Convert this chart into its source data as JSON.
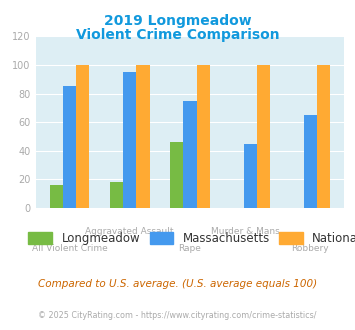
{
  "title_line1": "2019 Longmeadow",
  "title_line2": "Violent Crime Comparison",
  "categories": [
    "All Violent Crime",
    "Aggravated Assault",
    "Rape",
    "Murder & Mans...",
    "Robbery"
  ],
  "series": {
    "Longmeadow": [
      16,
      18,
      46,
      0,
      0
    ],
    "Massachusetts": [
      85,
      95,
      75,
      45,
      65
    ],
    "National": [
      100,
      100,
      100,
      100,
      100
    ]
  },
  "colors": {
    "Longmeadow": "#77bb44",
    "Massachusetts": "#4499ee",
    "National": "#ffaa33"
  },
  "ylim": [
    0,
    120
  ],
  "yticks": [
    0,
    20,
    40,
    60,
    80,
    100,
    120
  ],
  "title_color": "#1199dd",
  "axis_bg_color": "#ddeef4",
  "fig_bg_color": "#ffffff",
  "grid_color": "#ffffff",
  "footnote1": "Compared to U.S. average. (U.S. average equals 100)",
  "footnote2": "© 2025 CityRating.com - https://www.cityrating.com/crime-statistics/",
  "footnote1_color": "#cc6600",
  "footnote2_color": "#aaaaaa",
  "tick_label_color": "#aaaaaa",
  "legend_label_color": "#333333",
  "bar_width": 0.22
}
